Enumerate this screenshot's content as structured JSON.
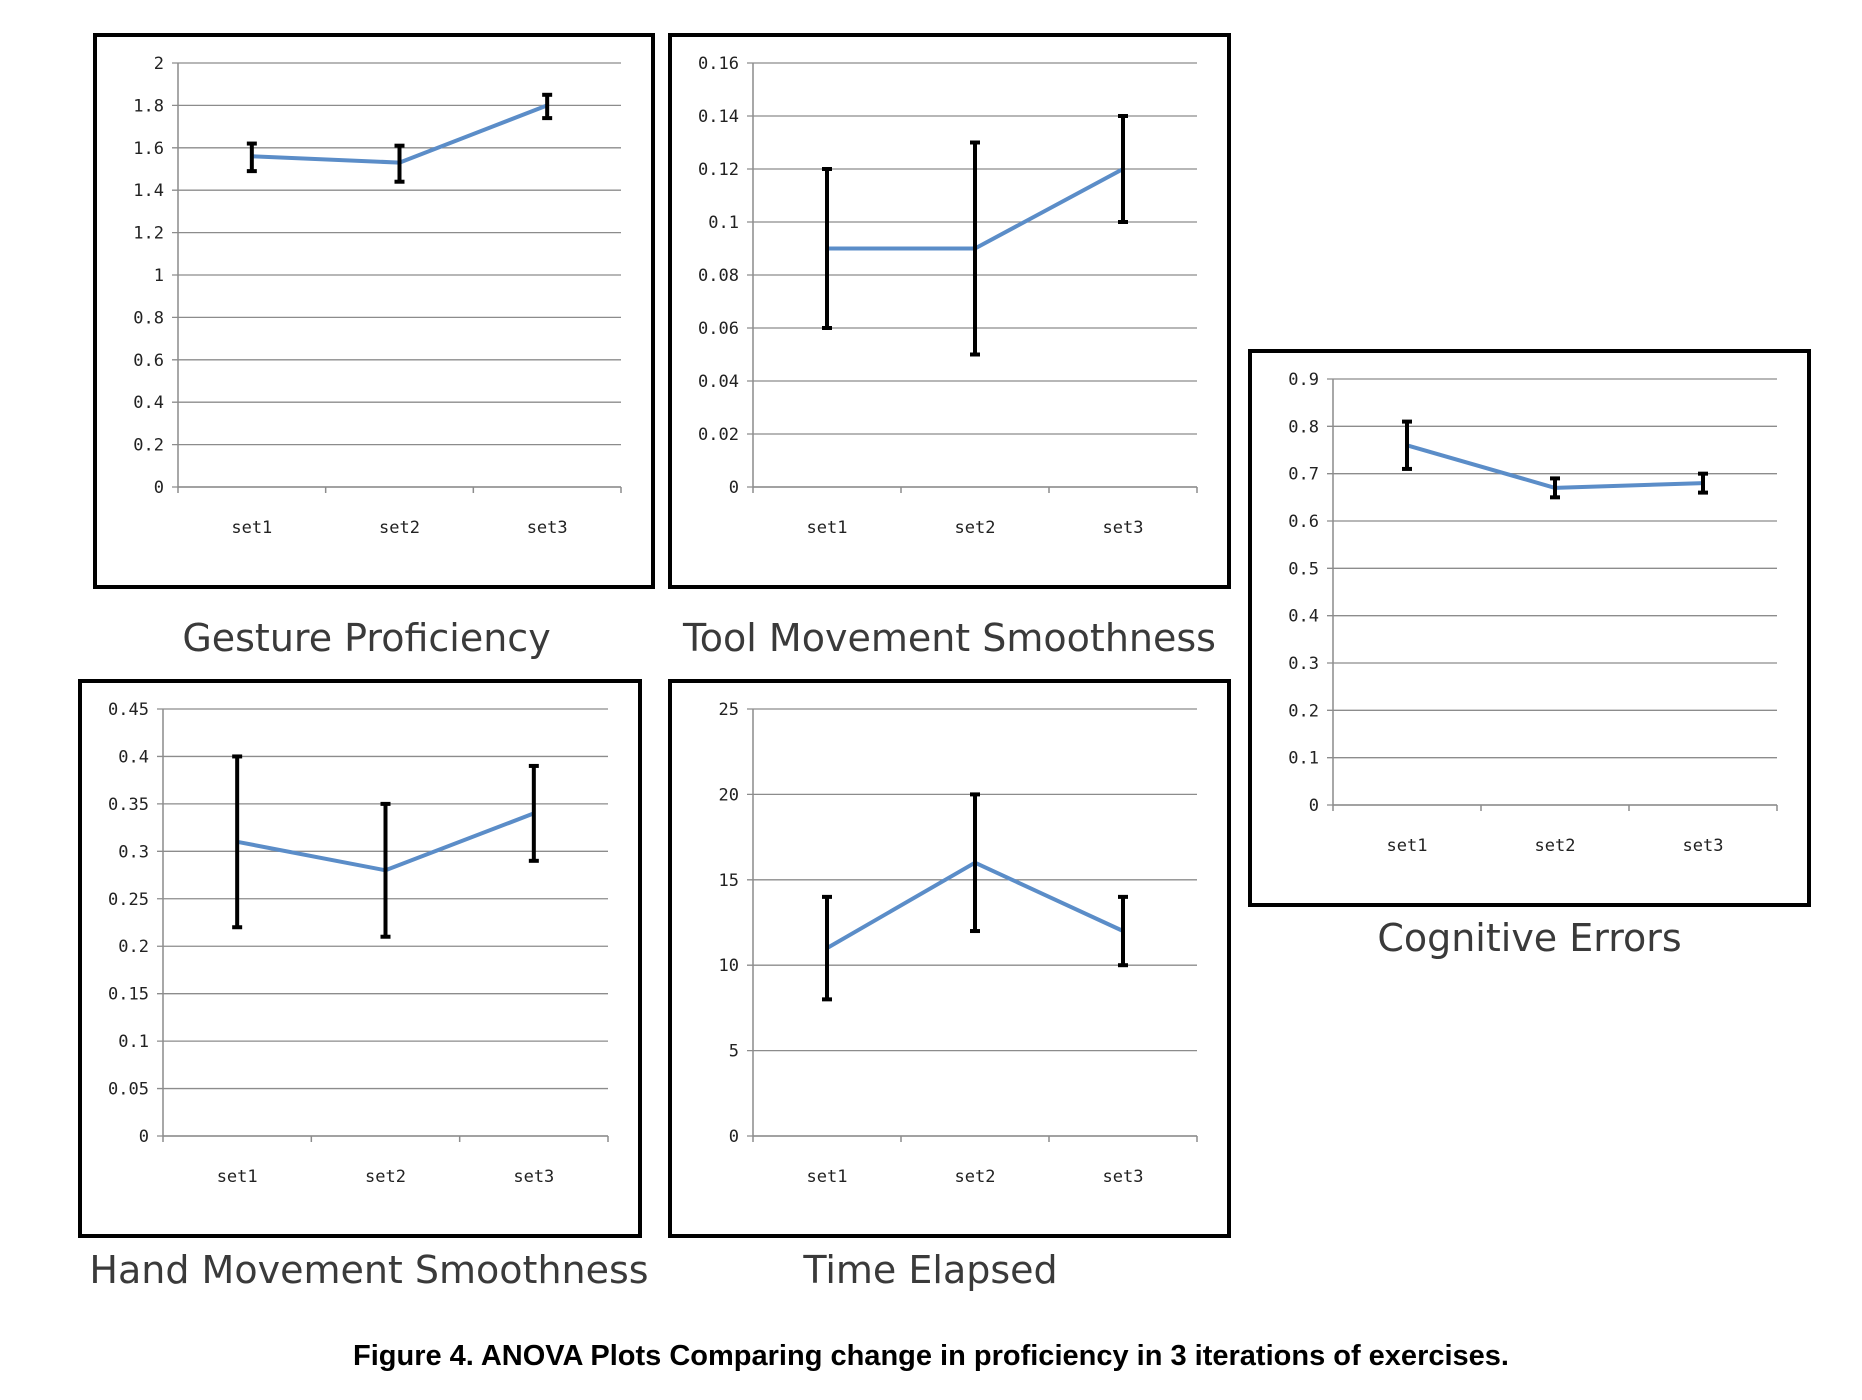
{
  "figure": {
    "caption": "Figure 4. ANOVA Plots Comparing change in proficiency in 3 iterations of exercises.",
    "line_color": "#5b8dc8",
    "error_bar_color": "#000000",
    "grid_color": "#8c8c8c"
  },
  "chart_data": [
    {
      "type": "line",
      "title": "Gesture Proficiency",
      "categories": [
        "set1",
        "set2",
        "set3"
      ],
      "values": [
        1.56,
        1.53,
        1.8
      ],
      "error_low": [
        1.49,
        1.44,
        1.74
      ],
      "error_high": [
        1.62,
        1.61,
        1.85
      ],
      "ylim": [
        0,
        2
      ],
      "yticks": [
        "0",
        "0.2",
        "0.4",
        "0.6",
        "0.8",
        "1",
        "1.2",
        "1.4",
        "1.6",
        "1.8",
        "2"
      ],
      "grid": true
    },
    {
      "type": "line",
      "title": "Tool Movement Smoothness",
      "categories": [
        "set1",
        "set2",
        "set3"
      ],
      "values": [
        0.09,
        0.09,
        0.12
      ],
      "error_low": [
        0.06,
        0.05,
        0.1
      ],
      "error_high": [
        0.12,
        0.13,
        0.14
      ],
      "ylim": [
        0,
        0.16
      ],
      "yticks": [
        "0",
        "0.02",
        "0.04",
        "0.06",
        "0.08",
        "0.1",
        "0.12",
        "0.14",
        "0.16"
      ],
      "grid": true
    },
    {
      "type": "line",
      "title": "Cognitive Errors",
      "categories": [
        "set1",
        "set2",
        "set3"
      ],
      "values": [
        0.76,
        0.67,
        0.68
      ],
      "error_low": [
        0.71,
        0.65,
        0.66
      ],
      "error_high": [
        0.81,
        0.69,
        0.7
      ],
      "ylim": [
        0,
        0.9
      ],
      "yticks": [
        "0",
        "0.1",
        "0.2",
        "0.3",
        "0.4",
        "0.5",
        "0.6",
        "0.7",
        "0.8",
        "0.9"
      ],
      "grid": true
    },
    {
      "type": "line",
      "title": "Hand Movement Smoothness",
      "categories": [
        "set1",
        "set2",
        "set3"
      ],
      "values": [
        0.31,
        0.28,
        0.34
      ],
      "error_low": [
        0.22,
        0.21,
        0.29
      ],
      "error_high": [
        0.4,
        0.35,
        0.39
      ],
      "ylim": [
        0,
        0.45
      ],
      "yticks": [
        "0",
        "0.05",
        "0.1",
        "0.15",
        "0.2",
        "0.25",
        "0.3",
        "0.35",
        "0.4",
        "0.45"
      ],
      "grid": true
    },
    {
      "type": "line",
      "title": "Time Elapsed",
      "categories": [
        "set1",
        "set2",
        "set3"
      ],
      "values": [
        11,
        16,
        12
      ],
      "error_low": [
        8,
        12,
        10
      ],
      "error_high": [
        14,
        20,
        14
      ],
      "ylim": [
        0,
        25
      ],
      "yticks": [
        "0",
        "5",
        "10",
        "15",
        "20",
        "25"
      ],
      "grid": true
    }
  ]
}
